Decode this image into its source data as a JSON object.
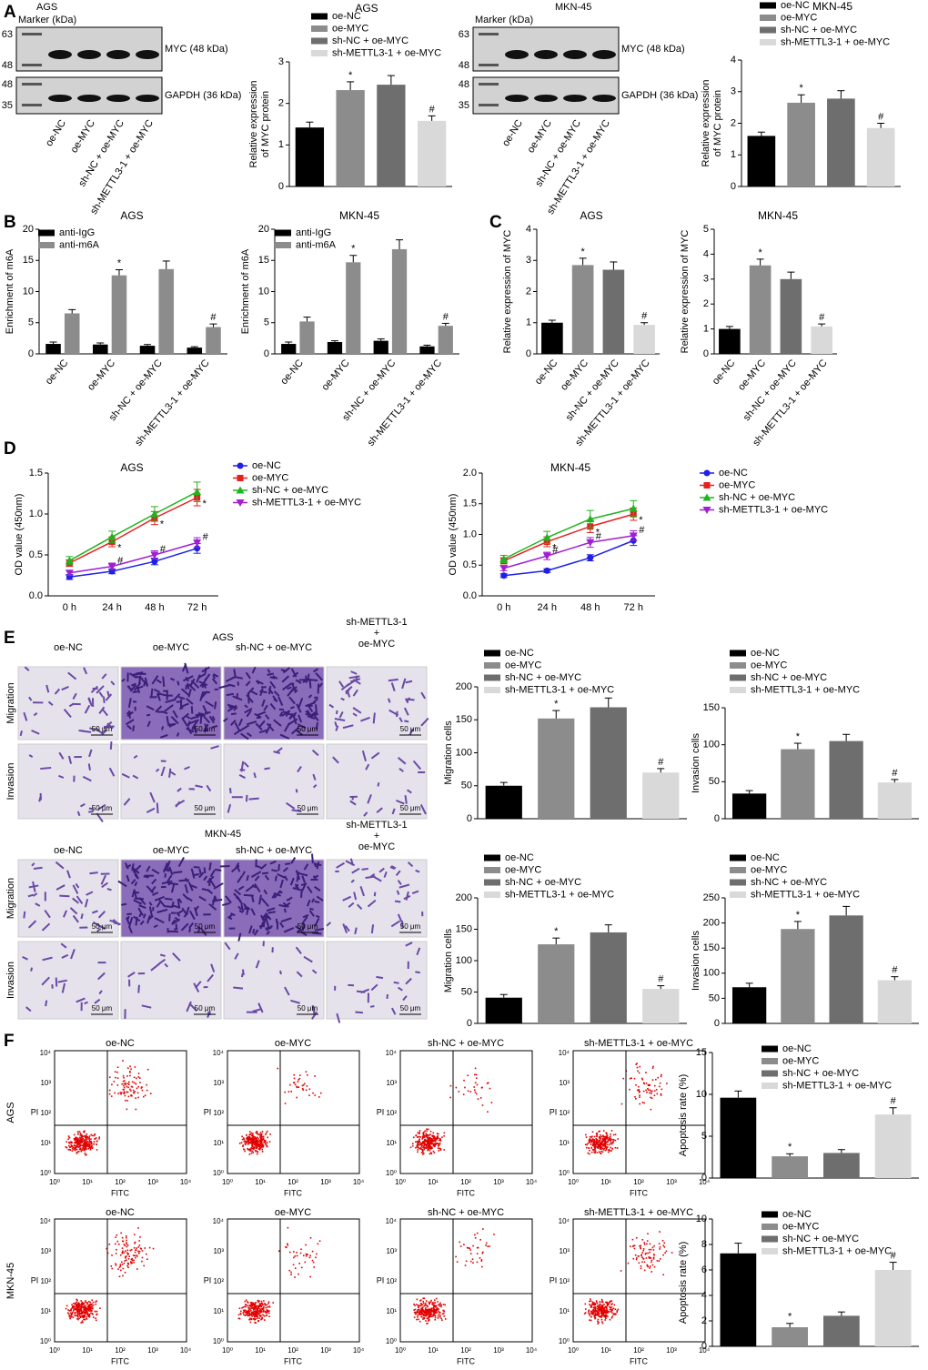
{
  "panel_labels": [
    "A",
    "B",
    "C",
    "D",
    "E",
    "F"
  ],
  "blots": [
    {
      "title": "AGS",
      "marker_label": "Marker (kDa)",
      "markers_top": [
        "63",
        "48"
      ],
      "markers_bottom": [
        "48",
        "35"
      ],
      "band_labels": [
        "MYC (48 kDa)",
        "GAPDH (36 kDa)"
      ],
      "lanes": [
        "oe-NC",
        "oe-MYC",
        "sh-NC + oe-MYC",
        "sh-METTL3-1 + oe-MYC"
      ]
    },
    {
      "title": "MKN-45",
      "marker_label": "Marker (kDa)",
      "markers_top": [
        "63",
        "48"
      ],
      "markers_bottom": [
        "48",
        "35"
      ],
      "band_labels": [
        "MYC (48 kDa)",
        "GAPDH (36 kDa)"
      ],
      "lanes": [
        "oe-NC",
        "oe-MYC",
        "sh-NC + oe-MYC",
        "sh-METTL3-1 + oe-MYC"
      ]
    }
  ],
  "micrographs": [
    {
      "title": "AGS",
      "columns": [
        [
          "oe-NC"
        ],
        [
          "oe-MYC"
        ],
        [
          "sh-NC + oe-MYC"
        ],
        [
          "sh-METTL3-1",
          "+",
          "oe-MYC"
        ]
      ],
      "rows": [
        "Migration",
        "Invasion"
      ],
      "scale": "50 μm"
    },
    {
      "title": "MKN-45",
      "columns": [
        [
          "oe-NC"
        ],
        [
          "oe-MYC"
        ],
        [
          "sh-NC + oe-MYC"
        ],
        [
          "sh-METTL3-1",
          "+",
          "oe-MYC"
        ]
      ],
      "rows": [
        "Migration",
        "Invasion"
      ],
      "scale": "50 μm"
    }
  ],
  "flow": {
    "columns": [
      "oe-NC",
      "oe-MYC",
      "sh-NC + oe-MYC",
      "sh-METTL3-1 + oe-MYC"
    ],
    "rows": [
      "AGS",
      "MKN-45"
    ],
    "x_label": "FITC",
    "y_label": "PI",
    "ticks": [
      "10⁰",
      "10¹",
      "10²",
      "10³",
      "10⁴"
    ]
  },
  "chart_data": [
    {
      "type": "bar",
      "title": "AGS",
      "y_label": [
        "Relative expression",
        "of MYC protein"
      ],
      "categories": [
        "oe-NC",
        "oe-MYC",
        "sh-NC + oe-MYC",
        "sh-METTL3-1 + oe-MYC"
      ],
      "colors": [
        "#000000",
        "#8c8c8c",
        "#6e6e6e",
        "#d9d9d9"
      ],
      "values": [
        1.42,
        2.32,
        2.45,
        1.58
      ],
      "errors": [
        0.13,
        0.2,
        0.22,
        0.12
      ],
      "annotations": [
        null,
        "*",
        null,
        "#"
      ],
      "ylim": [
        0,
        3
      ],
      "yticks": [
        0,
        1,
        2,
        3
      ],
      "legend": true,
      "xlabels": false
    },
    {
      "type": "bar",
      "title": "MKN-45",
      "y_label": [
        "Relative expression",
        "of MYC protein"
      ],
      "categories": [
        "oe-NC",
        "oe-MYC",
        "sh-NC + oe-MYC",
        "sh-METTL3-1 + oe-MYC"
      ],
      "colors": [
        "#000000",
        "#8c8c8c",
        "#6e6e6e",
        "#d9d9d9"
      ],
      "values": [
        1.6,
        2.65,
        2.78,
        1.85
      ],
      "errors": [
        0.12,
        0.25,
        0.25,
        0.15
      ],
      "annotations": [
        null,
        "*",
        null,
        "#"
      ],
      "ylim": [
        0,
        4
      ],
      "yticks": [
        0,
        1,
        2,
        3,
        4
      ],
      "legend": true,
      "xlabels": false
    },
    {
      "type": "grouped-bar",
      "title": "AGS",
      "y_label": [
        "Enrichment of m6A"
      ],
      "categories": [
        "oe-NC",
        "oe-MYC",
        "sh-NC + oe-MYC",
        "sh-METTL3-1 + oe-MYC"
      ],
      "series": [
        {
          "name": "anti-IgG",
          "color": "#000000",
          "values": [
            1.6,
            1.5,
            1.3,
            1.0
          ],
          "errors": [
            0.3,
            0.25,
            0.2,
            0.15
          ],
          "annotations": [
            null,
            null,
            null,
            null
          ]
        },
        {
          "name": "anti-m6A",
          "color": "#8c8c8c",
          "values": [
            6.5,
            12.6,
            13.6,
            4.3
          ],
          "errors": [
            0.6,
            0.9,
            1.3,
            0.5
          ],
          "annotations": [
            null,
            "*",
            null,
            "#"
          ]
        }
      ],
      "ylim": [
        0,
        20
      ],
      "yticks": [
        0,
        5,
        10,
        15,
        20
      ],
      "legend": true,
      "xlabels": true
    },
    {
      "type": "grouped-bar",
      "title": "MKN-45",
      "y_label": [
        "Enrichment of m6A"
      ],
      "categories": [
        "oe-NC",
        "oe-MYC",
        "sh-NC + oe-MYC",
        "sh-METTL3-1 + oe-MYC"
      ],
      "series": [
        {
          "name": "anti-IgG",
          "color": "#000000",
          "values": [
            1.6,
            1.9,
            2.1,
            1.2
          ],
          "errors": [
            0.3,
            0.2,
            0.3,
            0.2
          ],
          "annotations": [
            null,
            null,
            null,
            null
          ]
        },
        {
          "name": "anti-m6A",
          "color": "#8c8c8c",
          "values": [
            5.2,
            14.7,
            16.8,
            4.5
          ],
          "errors": [
            0.7,
            1.1,
            1.5,
            0.4
          ],
          "annotations": [
            null,
            "*",
            null,
            "#"
          ]
        }
      ],
      "ylim": [
        0,
        20
      ],
      "yticks": [
        0,
        5,
        10,
        15,
        20
      ],
      "legend": true,
      "xlabels": true
    },
    {
      "type": "bar",
      "title": "AGS",
      "y_label": [
        "Relative expression of MYC"
      ],
      "categories": [
        "oe-NC",
        "oe-MYC",
        "sh-NC + oe-MYC",
        "sh-METTL3-1 + oe-MYC"
      ],
      "colors": [
        "#000000",
        "#8c8c8c",
        "#6e6e6e",
        "#d9d9d9"
      ],
      "values": [
        1.0,
        2.85,
        2.7,
        0.93
      ],
      "errors": [
        0.08,
        0.22,
        0.25,
        0.07
      ],
      "annotations": [
        null,
        "*",
        null,
        "#"
      ],
      "ylim": [
        0,
        4
      ],
      "yticks": [
        0,
        1,
        2,
        3,
        4
      ],
      "legend": false,
      "xlabels": true
    },
    {
      "type": "bar",
      "title": "MKN-45",
      "y_label": [
        "Relative expression of MYC"
      ],
      "categories": [
        "oe-NC",
        "oe-MYC",
        "sh-NC + oe-MYC",
        "sh-METTL3-1 + oe-MYC"
      ],
      "colors": [
        "#000000",
        "#8c8c8c",
        "#6e6e6e",
        "#d9d9d9"
      ],
      "values": [
        1.0,
        3.55,
        3.0,
        1.1
      ],
      "errors": [
        0.1,
        0.25,
        0.28,
        0.1
      ],
      "annotations": [
        null,
        "*",
        null,
        "#"
      ],
      "ylim": [
        0,
        5
      ],
      "yticks": [
        0,
        1,
        2,
        3,
        4,
        5
      ],
      "legend": false,
      "xlabels": true
    },
    {
      "type": "line",
      "title": "AGS",
      "y_label": [
        "OD value (450nm)"
      ],
      "categories": [
        "0 h",
        "24 h",
        "48 h",
        "72 h"
      ],
      "series": [
        {
          "name": "oe-NC",
          "color": "#1f1fe6",
          "marker": "circle",
          "values": [
            0.23,
            0.3,
            0.42,
            0.58
          ],
          "errors": [
            0.03,
            0.03,
            0.04,
            0.06
          ],
          "annotations": [
            null,
            null,
            null,
            null
          ]
        },
        {
          "name": "oe-MYC",
          "color": "#e61f1f",
          "marker": "square",
          "values": [
            0.4,
            0.66,
            0.95,
            1.2
          ],
          "errors": [
            0.04,
            0.06,
            0.08,
            0.1
          ],
          "annotations": [
            null,
            "*",
            "*",
            "*"
          ]
        },
        {
          "name": "sh-NC + oe-MYC",
          "color": "#1fb41f",
          "marker": "triangle-up",
          "values": [
            0.43,
            0.72,
            1.0,
            1.27
          ],
          "errors": [
            0.05,
            0.07,
            0.09,
            0.12
          ],
          "annotations": [
            null,
            null,
            null,
            null
          ]
        },
        {
          "name": "sh-METTL3-1 + oe-MYC",
          "color": "#a01fd2",
          "marker": "triangle-down",
          "values": [
            0.28,
            0.36,
            0.5,
            0.65
          ],
          "errors": [
            0.03,
            0.04,
            0.05,
            0.06
          ],
          "annotations": [
            null,
            "#",
            "#",
            "#"
          ]
        }
      ],
      "ylim": [
        0,
        1.5
      ],
      "yticks": [
        {
          "value": 0,
          "label": "0.0"
        },
        0.5,
        {
          "value": 1,
          "label": "1.0"
        },
        1.5
      ],
      "legend": true,
      "xlabels": true
    },
    {
      "type": "line",
      "title": "MKN-45",
      "y_label": [
        "OD value (450nm)"
      ],
      "categories": [
        "0 h",
        "24 h",
        "48 h",
        "72 h"
      ],
      "series": [
        {
          "name": "oe-NC",
          "color": "#1f1fe6",
          "marker": "circle",
          "values": [
            0.33,
            0.41,
            0.62,
            0.9
          ],
          "errors": [
            0.03,
            0.03,
            0.05,
            0.08
          ],
          "annotations": [
            null,
            null,
            null,
            null
          ]
        },
        {
          "name": "oe-MYC",
          "color": "#e61f1f",
          "marker": "square",
          "values": [
            0.57,
            0.88,
            1.13,
            1.33
          ],
          "errors": [
            0.05,
            0.08,
            0.1,
            0.1
          ],
          "annotations": [
            null,
            "*",
            "*",
            "*"
          ]
        },
        {
          "name": "sh-NC + oe-MYC",
          "color": "#1fb41f",
          "marker": "triangle-up",
          "values": [
            0.6,
            0.95,
            1.25,
            1.42
          ],
          "errors": [
            0.06,
            0.1,
            0.14,
            0.13
          ],
          "annotations": [
            null,
            null,
            null,
            null
          ]
        },
        {
          "name": "sh-METTL3-1 + oe-MYC",
          "color": "#a01fd2",
          "marker": "triangle-down",
          "values": [
            0.45,
            0.65,
            0.87,
            0.98
          ],
          "errors": [
            0.04,
            0.06,
            0.08,
            0.08
          ],
          "annotations": [
            null,
            "#",
            "#",
            "#"
          ]
        }
      ],
      "ylim": [
        0,
        2
      ],
      "yticks": [
        {
          "value": 0,
          "label": "0.0"
        },
        0.5,
        {
          "value": 1,
          "label": "1.0"
        },
        1.5,
        {
          "value": 2,
          "label": "2.0"
        }
      ],
      "legend": true,
      "xlabels": true
    },
    {
      "type": "bar",
      "y_label": [
        "Migration cells"
      ],
      "categories": [
        "oe-NC",
        "oe-MYC",
        "sh-NC + oe-MYC",
        "sh-METTL3-1 + oe-MYC"
      ],
      "colors": [
        "#000000",
        "#8c8c8c",
        "#6e6e6e",
        "#d9d9d9"
      ],
      "values": [
        50,
        152,
        169,
        70
      ],
      "errors": [
        5,
        12,
        14,
        6
      ],
      "annotations": [
        null,
        "*",
        null,
        "#"
      ],
      "ylim": [
        0,
        200
      ],
      "yticks": [
        0,
        50,
        100,
        150,
        200
      ],
      "legend": true,
      "xlabels": false
    },
    {
      "type": "bar",
      "y_label": [
        "Invasion cells"
      ],
      "categories": [
        "oe-NC",
        "oe-MYC",
        "sh-NC + oe-MYC",
        "sh-METTL3-1 + oe-MYC"
      ],
      "colors": [
        "#000000",
        "#8c8c8c",
        "#6e6e6e",
        "#d9d9d9"
      ],
      "values": [
        34,
        94,
        105,
        49
      ],
      "errors": [
        4,
        8,
        9,
        4
      ],
      "annotations": [
        null,
        "*",
        null,
        "#"
      ],
      "ylim": [
        0,
        150
      ],
      "yticks": [
        0,
        50,
        100,
        150
      ],
      "legend": true,
      "xlabels": false
    },
    {
      "type": "bar",
      "y_label": [
        "Migration cells"
      ],
      "categories": [
        "oe-NC",
        "oe-MYC",
        "sh-NC + oe-MYC",
        "sh-METTL3-1 + oe-MYC"
      ],
      "colors": [
        "#000000",
        "#8c8c8c",
        "#6e6e6e",
        "#d9d9d9"
      ],
      "values": [
        41,
        126,
        145,
        55
      ],
      "errors": [
        5,
        10,
        12,
        5
      ],
      "annotations": [
        null,
        "*",
        null,
        "#"
      ],
      "ylim": [
        0,
        200
      ],
      "yticks": [
        0,
        50,
        100,
        150,
        200
      ],
      "legend": true,
      "xlabels": false
    },
    {
      "type": "bar",
      "y_label": [
        "Invasion cells"
      ],
      "categories": [
        "oe-NC",
        "oe-MYC",
        "sh-NC + oe-MYC",
        "sh-METTL3-1 + oe-MYC"
      ],
      "colors": [
        "#000000",
        "#8c8c8c",
        "#6e6e6e",
        "#d9d9d9"
      ],
      "values": [
        72,
        188,
        215,
        86
      ],
      "errors": [
        8,
        15,
        18,
        7
      ],
      "annotations": [
        null,
        "*",
        null,
        "#"
      ],
      "ylim": [
        0,
        250
      ],
      "yticks": [
        0,
        50,
        100,
        150,
        200,
        250
      ],
      "legend": true,
      "xlabels": false
    },
    {
      "type": "bar",
      "y_label": [
        "Apoptosis rate (%)"
      ],
      "categories": [
        "oe-NC",
        "oe-MYC",
        "sh-NC + oe-MYC",
        "sh-METTL3-1 + oe-MYC"
      ],
      "colors": [
        "#000000",
        "#8c8c8c",
        "#6e6e6e",
        "#d9d9d9"
      ],
      "values": [
        9.6,
        2.6,
        3.0,
        7.6
      ],
      "errors": [
        0.8,
        0.3,
        0.4,
        0.8
      ],
      "annotations": [
        null,
        "*",
        null,
        "#"
      ],
      "ylim": [
        0,
        15
      ],
      "yticks": [
        0,
        5,
        10,
        15
      ],
      "legend": true,
      "xlabels": false
    },
    {
      "type": "bar",
      "y_label": [
        "Apoptosis rate (%)"
      ],
      "categories": [
        "oe-NC",
        "oe-MYC",
        "sh-NC + oe-MYC",
        "sh-METTL3-1 + oe-MYC"
      ],
      "colors": [
        "#000000",
        "#8c8c8c",
        "#6e6e6e",
        "#d9d9d9"
      ],
      "values": [
        7.3,
        1.5,
        2.4,
        6.0
      ],
      "errors": [
        0.8,
        0.3,
        0.3,
        0.6
      ],
      "annotations": [
        null,
        "*",
        null,
        "#"
      ],
      "ylim": [
        0,
        10
      ],
      "yticks": [
        0,
        2,
        4,
        6,
        8,
        10
      ],
      "legend": true,
      "xlabels": false
    }
  ]
}
